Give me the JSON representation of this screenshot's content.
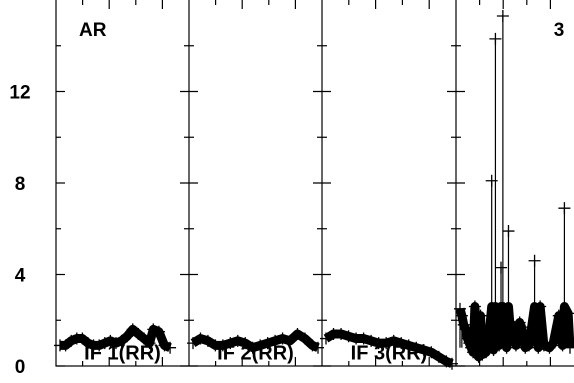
{
  "chart_data": {
    "type": "scatter",
    "title": "",
    "xlabel": "",
    "ylabel": "",
    "ylim": [
      0,
      16
    ],
    "y_ticks": [
      "0",
      "4",
      "8",
      "12"
    ],
    "corner_labels": {
      "left": "AR",
      "right": "3"
    },
    "grid": false,
    "marker": "plus",
    "series": [
      {
        "name": "IF 1(RR)",
        "x": [
          0,
          6,
          12,
          18,
          24,
          30,
          36,
          42,
          48,
          54,
          60,
          66,
          72,
          78,
          84,
          90,
          96,
          100,
          106,
          112,
          118
        ],
        "values": [
          0.9,
          0.9,
          1.1,
          1.2,
          1.2,
          1.0,
          0.9,
          0.9,
          1.0,
          1.1,
          1.0,
          1.1,
          1.3,
          1.6,
          1.4,
          1.2,
          1.0,
          1.6,
          1.5,
          0.9,
          0.8
        ]
      },
      {
        "name": "IF 2(RR)",
        "x": [
          0,
          8,
          16,
          24,
          32,
          40,
          48,
          56,
          64,
          72,
          80,
          88,
          96,
          104,
          112,
          120,
          128,
          134
        ],
        "values": [
          1.0,
          1.2,
          1.1,
          0.9,
          0.9,
          1.0,
          1.1,
          1.0,
          0.8,
          0.9,
          1.0,
          1.1,
          1.2,
          1.1,
          1.4,
          1.2,
          0.9,
          0.8
        ]
      },
      {
        "name": "IF 3(RR)",
        "x": [
          0,
          8,
          16,
          24,
          32,
          40,
          48,
          56,
          64,
          72,
          80,
          88,
          96,
          104,
          112,
          120,
          128,
          134
        ],
        "values": [
          1.2,
          1.4,
          1.4,
          1.3,
          1.2,
          1.2,
          1.1,
          1.0,
          1.0,
          1.1,
          1.0,
          0.9,
          0.8,
          0.7,
          0.6,
          0.4,
          0.2,
          0.1
        ]
      },
      {
        "name": "",
        "x": [
          0,
          2,
          4,
          6,
          8,
          10,
          12,
          14,
          16,
          18,
          20,
          22,
          24,
          28,
          30,
          34,
          36,
          38,
          42,
          44,
          46,
          50,
          52,
          54,
          56,
          60,
          62,
          64,
          66,
          70,
          74,
          80,
          84,
          86,
          90,
          96,
          100,
          106,
          110,
          112,
          116,
          118
        ],
        "values": [
          2.5,
          2.2,
          1.8,
          1.6,
          1.2,
          1.0,
          0.8,
          0.6,
          2.6,
          0.5,
          0.4,
          2.2,
          0.5,
          0.6,
          0.8,
          8.1,
          0.7,
          14.3,
          0.9,
          4.3,
          15.3,
          0.8,
          5.9,
          1.6,
          1.8,
          0.9,
          1.1,
          1.9,
          1.7,
          0.8,
          0.9,
          4.6,
          0.8,
          2.6,
          0.9,
          0.8,
          1.0,
          2.2,
          0.9,
          6.9,
          2.3,
          0.8
        ]
      }
    ]
  }
}
